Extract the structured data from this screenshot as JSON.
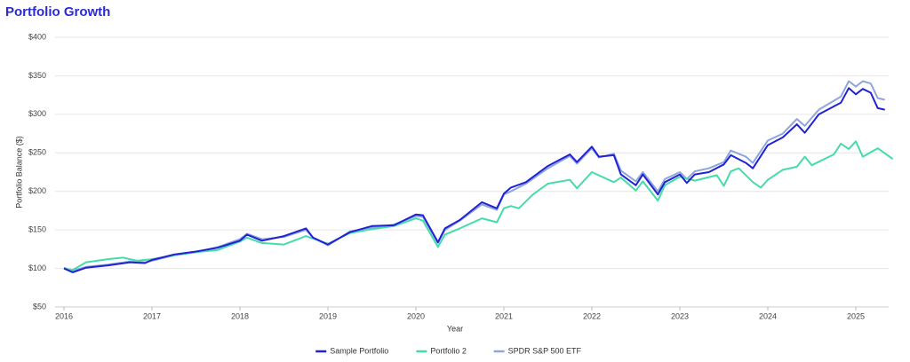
{
  "chart_data": {
    "type": "line",
    "title": "Portfolio Growth",
    "x_label": "Year",
    "y_label": "Portfolio Balance ($)",
    "xlim": [
      2016,
      2025
    ],
    "xticks": [
      2016,
      2017,
      2018,
      2019,
      2020,
      2021,
      2022,
      2023,
      2024,
      2025
    ],
    "ylim": [
      50,
      400
    ],
    "yticks": [
      {
        "value": 50,
        "label": "$50"
      },
      {
        "value": 100,
        "label": "$100"
      },
      {
        "value": 150,
        "label": "$150"
      },
      {
        "value": 200,
        "label": "$200"
      },
      {
        "value": 250,
        "label": "$250"
      },
      {
        "value": 300,
        "label": "$300"
      },
      {
        "value": 350,
        "label": "$350"
      },
      {
        "value": 400,
        "label": "$400"
      }
    ],
    "grid": true,
    "legend": "bottom",
    "series": [
      {
        "name": "Sample Portfolio",
        "color": "#2222d4",
        "x": [
          2016.0,
          2016.1,
          2016.25,
          2016.5,
          2016.75,
          2016.92,
          2017.0,
          2017.25,
          2017.5,
          2017.75,
          2018.0,
          2018.08,
          2018.25,
          2018.5,
          2018.75,
          2018.83,
          2019.0,
          2019.25,
          2019.5,
          2019.75,
          2020.0,
          2020.08,
          2020.25,
          2020.33,
          2020.5,
          2020.75,
          2020.92,
          2021.0,
          2021.08,
          2021.25,
          2021.5,
          2021.75,
          2021.83,
          2022.0,
          2022.08,
          2022.25,
          2022.33,
          2022.5,
          2022.58,
          2022.75,
          2022.83,
          2023.0,
          2023.08,
          2023.17,
          2023.33,
          2023.5,
          2023.58,
          2023.75,
          2023.83,
          2024.0,
          2024.17,
          2024.33,
          2024.42,
          2024.58,
          2024.83,
          2024.92,
          2025.0,
          2025.08,
          2025.17,
          2025.25,
          2025.33
        ],
        "values": [
          100,
          95,
          101,
          104,
          108,
          107,
          111,
          118,
          122,
          127,
          136,
          144,
          136,
          142,
          152,
          140,
          131,
          147,
          155,
          156,
          170,
          169,
          134,
          152,
          163,
          186,
          178,
          197,
          205,
          212,
          233,
          248,
          238,
          258,
          245,
          247,
          222,
          208,
          222,
          196,
          212,
          222,
          211,
          222,
          225,
          235,
          247,
          237,
          230,
          260,
          270,
          287,
          276,
          300,
          315,
          334,
          326,
          333,
          328,
          308,
          306
        ]
      },
      {
        "name": "Portfolio 2",
        "color": "#44dcaa",
        "x": [
          2016.0,
          2016.1,
          2016.25,
          2016.5,
          2016.67,
          2016.83,
          2017.0,
          2017.25,
          2017.5,
          2017.75,
          2018.0,
          2018.08,
          2018.25,
          2018.5,
          2018.75,
          2019.0,
          2019.25,
          2019.5,
          2019.75,
          2020.0,
          2020.08,
          2020.25,
          2020.33,
          2020.5,
          2020.75,
          2020.92,
          2021.0,
          2021.08,
          2021.17,
          2021.33,
          2021.5,
          2021.75,
          2021.83,
          2022.0,
          2022.25,
          2022.33,
          2022.5,
          2022.58,
          2022.75,
          2022.83,
          2023.0,
          2023.17,
          2023.42,
          2023.5,
          2023.58,
          2023.67,
          2023.83,
          2023.92,
          2024.0,
          2024.17,
          2024.33,
          2024.42,
          2024.5,
          2024.75,
          2024.83,
          2024.92,
          2025.0,
          2025.08,
          2025.25,
          2025.42
        ],
        "values": [
          100,
          98,
          108,
          112,
          114,
          110,
          112,
          117,
          121,
          124,
          135,
          140,
          133,
          131,
          142,
          132,
          146,
          151,
          155,
          165,
          162,
          128,
          144,
          152,
          165,
          160,
          178,
          181,
          178,
          196,
          210,
          215,
          204,
          225,
          212,
          218,
          201,
          213,
          188,
          208,
          219,
          214,
          221,
          207,
          226,
          230,
          212,
          205,
          215,
          228,
          232,
          245,
          234,
          248,
          262,
          255,
          265,
          245,
          256,
          242
        ]
      },
      {
        "name": "SPDR S&P 500 ETF",
        "color": "#8ea6dc",
        "x": [
          2016.0,
          2016.1,
          2016.25,
          2016.5,
          2016.75,
          2016.92,
          2017.0,
          2017.25,
          2017.5,
          2017.75,
          2018.0,
          2018.08,
          2018.25,
          2018.5,
          2018.75,
          2018.83,
          2019.0,
          2019.25,
          2019.5,
          2019.75,
          2020.0,
          2020.08,
          2020.25,
          2020.33,
          2020.5,
          2020.75,
          2020.92,
          2021.0,
          2021.08,
          2021.25,
          2021.5,
          2021.75,
          2021.83,
          2022.0,
          2022.08,
          2022.25,
          2022.33,
          2022.5,
          2022.58,
          2022.75,
          2022.83,
          2023.0,
          2023.08,
          2023.17,
          2023.33,
          2023.5,
          2023.58,
          2023.75,
          2023.83,
          2024.0,
          2024.17,
          2024.33,
          2024.42,
          2024.58,
          2024.83,
          2024.92,
          2025.0,
          2025.08,
          2025.17,
          2025.25,
          2025.33
        ],
        "values": [
          101,
          97,
          102,
          105,
          109,
          108,
          110,
          117,
          121,
          128,
          138,
          145,
          138,
          141,
          150,
          140,
          130,
          148,
          153,
          157,
          168,
          167,
          133,
          150,
          162,
          183,
          176,
          196,
          200,
          210,
          230,
          246,
          236,
          256,
          244,
          249,
          227,
          213,
          225,
          200,
          216,
          225,
          216,
          226,
          230,
          238,
          253,
          245,
          237,
          266,
          275,
          294,
          285,
          306,
          323,
          343,
          336,
          343,
          340,
          321,
          319
        ]
      }
    ]
  }
}
